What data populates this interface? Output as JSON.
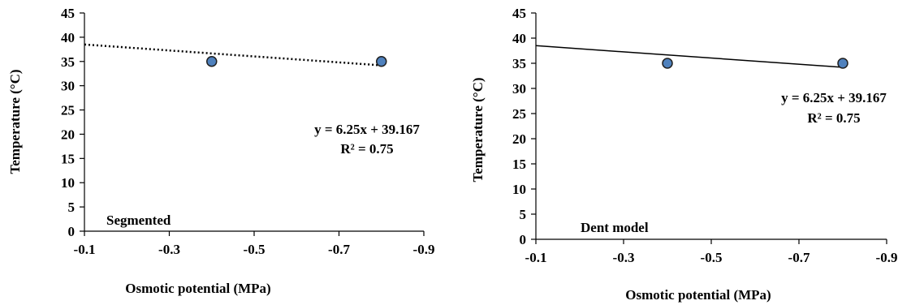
{
  "chart_data": [
    {
      "type": "scatter",
      "xlabel": "Osmotic potential (MPa)",
      "ylabel": "Temperature (°C)",
      "xlim": [
        -0.1,
        -0.9
      ],
      "ylim": [
        0,
        45
      ],
      "x_ticks": [
        "-0.1",
        "-0.3",
        "-0.5",
        "-0.7",
        "-0.9"
      ],
      "y_ticks": [
        "0",
        "5",
        "10",
        "15",
        "20",
        "25",
        "30",
        "35",
        "40",
        "45"
      ],
      "points": [
        {
          "x": -0.4,
          "y": 35
        },
        {
          "x": -0.8,
          "y": 35
        }
      ],
      "trendline": {
        "style": "dotted",
        "x": [
          -0.1,
          -0.8
        ],
        "y": [
          38.5,
          34.2
        ]
      },
      "equation": "y = 6.25x + 39.167",
      "r_squared": "R² = 0.75",
      "annotation": "Segmented",
      "marker_color": "#4f81bd",
      "grid": false
    },
    {
      "type": "scatter",
      "xlabel": "Osmotic potential (MPa)",
      "ylabel": "Temperature (°C)",
      "xlim": [
        -0.1,
        -0.9
      ],
      "ylim": [
        0,
        45
      ],
      "x_ticks": [
        "-0.1",
        "-0.3",
        "-0.5",
        "-0.7",
        "-0.9"
      ],
      "y_ticks": [
        "0",
        "5",
        "10",
        "15",
        "20",
        "25",
        "30",
        "35",
        "40",
        "45"
      ],
      "points": [
        {
          "x": -0.4,
          "y": 35
        },
        {
          "x": -0.8,
          "y": 35
        }
      ],
      "trendline": {
        "style": "solid",
        "x": [
          -0.1,
          -0.8
        ],
        "y": [
          38.5,
          34.2
        ]
      },
      "equation": "y = 6.25x + 39.167",
      "r_squared": "R² = 0.75",
      "annotation": "Dent model",
      "marker_color": "#4f81bd",
      "grid": false
    }
  ]
}
